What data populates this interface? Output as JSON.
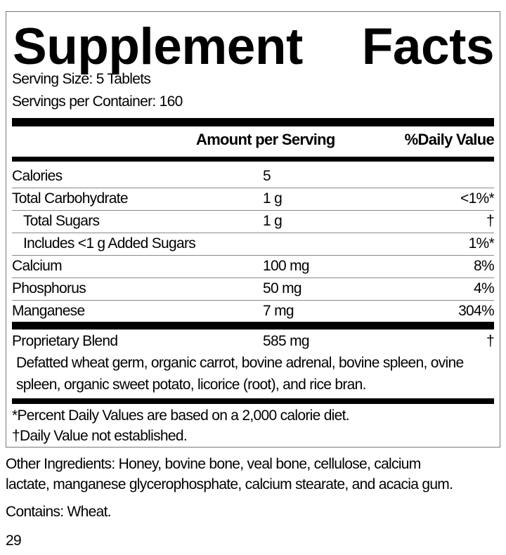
{
  "title_words": [
    "Supplement",
    "Facts"
  ],
  "serving_size": "Serving Size: 5 Tablets",
  "servings_per_container": "Servings per Container: 160",
  "header": {
    "amount": "Amount per Serving",
    "dv": "%Daily Value"
  },
  "rows": [
    {
      "name": "Calories",
      "amount": "5",
      "dv": ""
    },
    {
      "name": "Total Carbohydrate",
      "amount": "1 g",
      "dv": "<1%*"
    },
    {
      "name": "Total Sugars",
      "amount": "1 g",
      "dv": "†"
    },
    {
      "name": "Includes <1 g Added Sugars",
      "amount": "",
      "dv": "1%*"
    },
    {
      "name": "Calcium",
      "amount": "100 mg",
      "dv": "8%"
    },
    {
      "name": "Phosphorus",
      "amount": "50 mg",
      "dv": "4%"
    },
    {
      "name": "Manganese",
      "amount": "7 mg",
      "dv": "304%"
    }
  ],
  "blend": {
    "name": "Proprietary Blend",
    "amount": "585 mg",
    "dv": "†",
    "line1": "Defatted wheat germ, organic carrot, bovine adrenal, bovine spleen, ovine",
    "line2": "spleen, organic sweet potato, licorice (root), and rice bran."
  },
  "footnotes": [
    "*Percent Daily Values are based on a 2,000 calorie diet.",
    "†Daily Value not established."
  ],
  "other_ingredients": [
    "Other Ingredients: Honey, bovine bone, veal bone, cellulose, calcium",
    "lactate, manganese glycerophosphate, calcium stearate, and acacia gum."
  ],
  "contains": "Contains: Wheat.",
  "page_number": "29"
}
